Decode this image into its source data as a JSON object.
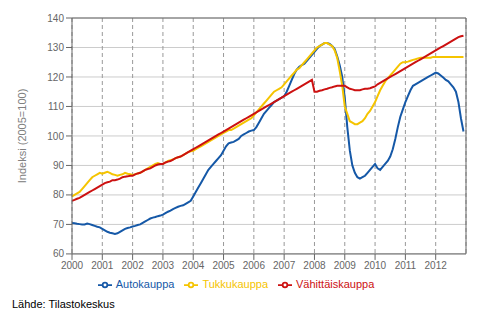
{
  "chart_data": {
    "type": "line",
    "ylabel": "Indeksi (2005=100)",
    "annotation": "Lähde: Tilastokeskus",
    "grid": true,
    "legend": "bottom",
    "ylim": [
      60,
      140
    ],
    "yticks": [
      60,
      70,
      80,
      90,
      100,
      110,
      120,
      130,
      140
    ],
    "xlim": [
      2000.0,
      2013.0
    ],
    "xticks": [
      2000,
      2001,
      2002,
      2003,
      2004,
      2005,
      2006,
      2007,
      2008,
      2009,
      2010,
      2011,
      2012
    ],
    "x": [
      2000.0,
      2000.083,
      2000.167,
      2000.25,
      2000.333,
      2000.417,
      2000.5,
      2000.583,
      2000.667,
      2000.75,
      2000.833,
      2000.917,
      2001.0,
      2001.083,
      2001.167,
      2001.25,
      2001.333,
      2001.417,
      2001.5,
      2001.583,
      2001.667,
      2001.75,
      2001.833,
      2001.917,
      2002.0,
      2002.083,
      2002.167,
      2002.25,
      2002.333,
      2002.417,
      2002.5,
      2002.583,
      2002.667,
      2002.75,
      2002.833,
      2002.917,
      2003.0,
      2003.083,
      2003.167,
      2003.25,
      2003.333,
      2003.417,
      2003.5,
      2003.583,
      2003.667,
      2003.75,
      2003.833,
      2003.917,
      2004.0,
      2004.083,
      2004.167,
      2004.25,
      2004.333,
      2004.417,
      2004.5,
      2004.583,
      2004.667,
      2004.75,
      2004.833,
      2004.917,
      2005.0,
      2005.083,
      2005.167,
      2005.25,
      2005.333,
      2005.417,
      2005.5,
      2005.583,
      2005.667,
      2005.75,
      2005.833,
      2005.917,
      2006.0,
      2006.083,
      2006.167,
      2006.25,
      2006.333,
      2006.417,
      2006.5,
      2006.583,
      2006.667,
      2006.75,
      2006.833,
      2006.917,
      2007.0,
      2007.083,
      2007.167,
      2007.25,
      2007.333,
      2007.417,
      2007.5,
      2007.583,
      2007.667,
      2007.75,
      2007.833,
      2007.917,
      2008.0,
      2008.083,
      2008.167,
      2008.25,
      2008.333,
      2008.417,
      2008.5,
      2008.583,
      2008.667,
      2008.75,
      2008.833,
      2008.917,
      2009.0,
      2009.083,
      2009.167,
      2009.25,
      2009.333,
      2009.417,
      2009.5,
      2009.583,
      2009.667,
      2009.75,
      2009.833,
      2009.917,
      2010.0,
      2010.083,
      2010.167,
      2010.25,
      2010.333,
      2010.417,
      2010.5,
      2010.583,
      2010.667,
      2010.75,
      2010.833,
      2010.917,
      2011.0,
      2011.083,
      2011.167,
      2011.25,
      2011.333,
      2011.417,
      2011.5,
      2011.583,
      2011.667,
      2011.75,
      2011.833,
      2011.917,
      2012.0,
      2012.083,
      2012.167,
      2012.25,
      2012.333,
      2012.417,
      2012.5,
      2012.583,
      2012.667,
      2012.75,
      2012.833,
      2012.917
    ],
    "series": [
      {
        "name": "Autokauppa",
        "color": "#1558A7",
        "values": [
          70.5,
          70.4,
          70.2,
          70.1,
          70.0,
          70.0,
          70.3,
          70.1,
          69.8,
          69.5,
          69.2,
          69.0,
          68.5,
          68.0,
          67.5,
          67.2,
          67.0,
          66.8,
          67.0,
          67.5,
          68.0,
          68.5,
          68.8,
          69.0,
          69.3,
          69.5,
          69.8,
          70.0,
          70.5,
          71.0,
          71.5,
          72.0,
          72.3,
          72.5,
          72.8,
          73.0,
          73.3,
          73.8,
          74.3,
          74.7,
          75.2,
          75.6,
          76.0,
          76.3,
          76.5,
          77.0,
          77.5,
          78.0,
          79.5,
          81.0,
          82.5,
          84.0,
          85.5,
          87.0,
          88.5,
          89.5,
          90.5,
          91.5,
          92.5,
          93.5,
          95.0,
          96.5,
          97.5,
          97.8,
          98.0,
          98.5,
          99.0,
          100.0,
          100.5,
          101.0,
          101.5,
          101.8,
          102.0,
          103.0,
          104.5,
          106.0,
          107.5,
          108.5,
          109.5,
          110.5,
          111.5,
          112.0,
          112.5,
          113.0,
          113.5,
          115.0,
          117.0,
          119.0,
          121.0,
          122.5,
          123.5,
          124.0,
          124.5,
          125.5,
          126.5,
          127.5,
          128.5,
          129.5,
          130.5,
          131.0,
          131.5,
          131.5,
          131.2,
          130.5,
          129.5,
          127.0,
          124.0,
          120.0,
          113.0,
          103.0,
          95.0,
          90.0,
          87.5,
          86.0,
          85.5,
          86.0,
          86.5,
          87.5,
          88.5,
          89.5,
          90.5,
          89.0,
          88.5,
          89.5,
          90.5,
          91.5,
          93.0,
          95.5,
          99.0,
          103.0,
          106.5,
          109.0,
          111.5,
          113.5,
          115.5,
          117.0,
          117.5,
          118.0,
          118.5,
          119.0,
          119.5,
          120.0,
          120.5,
          121.0,
          121.5,
          121.2,
          120.5,
          119.8,
          119.0,
          118.5,
          117.5,
          116.5,
          115.0,
          111.5,
          106.0,
          101.5
        ]
      },
      {
        "name": "Tukkukauppa",
        "color": "#F5C400",
        "values": [
          79.5,
          80.0,
          80.5,
          81.0,
          82.0,
          83.0,
          84.0,
          85.0,
          86.0,
          86.5,
          87.0,
          87.5,
          87.2,
          87.5,
          87.8,
          87.5,
          87.0,
          86.8,
          86.5,
          86.8,
          87.0,
          87.5,
          87.2,
          87.0,
          86.8,
          87.0,
          87.3,
          87.5,
          88.0,
          88.5,
          89.0,
          89.5,
          90.0,
          90.5,
          90.8,
          90.5,
          90.5,
          91.0,
          91.5,
          91.8,
          92.0,
          92.5,
          92.8,
          93.0,
          93.5,
          94.0,
          94.5,
          94.8,
          95.0,
          95.5,
          96.0,
          96.5,
          97.0,
          97.5,
          98.0,
          98.5,
          99.0,
          99.5,
          100.0,
          100.5,
          101.0,
          101.5,
          102.0,
          102.0,
          102.5,
          103.0,
          103.5,
          104.0,
          104.5,
          105.0,
          105.5,
          106.0,
          107.0,
          108.0,
          109.0,
          110.0,
          111.0,
          112.0,
          113.0,
          114.0,
          115.0,
          115.5,
          116.0,
          116.5,
          117.5,
          118.5,
          119.5,
          120.5,
          121.5,
          122.5,
          123.0,
          124.0,
          125.0,
          126.0,
          127.0,
          128.0,
          129.0,
          130.0,
          130.5,
          131.0,
          131.5,
          131.5,
          131.0,
          130.5,
          129.0,
          126.5,
          122.0,
          117.0,
          110.0,
          107.5,
          105.0,
          104.5,
          104.0,
          104.0,
          104.5,
          105.0,
          106.0,
          107.5,
          108.5,
          110.0,
          111.5,
          113.5,
          115.5,
          117.0,
          118.5,
          119.5,
          120.5,
          121.5,
          122.5,
          123.5,
          124.5,
          125.0,
          125.0,
          125.2,
          125.5,
          125.8,
          126.0,
          126.3,
          126.5,
          126.5,
          126.5,
          126.5,
          126.5,
          126.8,
          126.8,
          126.8,
          126.8,
          126.8,
          126.8,
          126.8,
          126.8,
          126.8,
          126.8,
          126.8,
          126.8,
          126.8
        ]
      },
      {
        "name": "Vähittäiskauppa",
        "color": "#CC1111",
        "values": [
          78.0,
          78.3,
          78.7,
          79.0,
          79.5,
          80.0,
          80.5,
          81.0,
          81.5,
          82.0,
          82.5,
          83.0,
          83.5,
          84.0,
          84.3,
          84.5,
          85.0,
          85.0,
          85.2,
          85.5,
          86.0,
          86.2,
          86.3,
          86.5,
          86.5,
          87.0,
          87.3,
          87.5,
          88.0,
          88.5,
          88.8,
          89.0,
          89.5,
          90.0,
          90.3,
          90.5,
          90.5,
          91.0,
          91.3,
          91.5,
          92.0,
          92.5,
          92.8,
          93.0,
          93.5,
          94.0,
          94.5,
          95.0,
          95.5,
          96.0,
          96.5,
          97.0,
          97.5,
          98.0,
          98.5,
          99.0,
          99.5,
          100.0,
          100.5,
          101.0,
          101.5,
          102.0,
          102.5,
          103.0,
          103.5,
          104.0,
          104.5,
          105.0,
          105.5,
          106.0,
          106.5,
          107.0,
          107.5,
          108.0,
          108.5,
          109.0,
          109.5,
          110.0,
          110.5,
          111.0,
          111.5,
          112.0,
          112.5,
          113.0,
          113.5,
          114.0,
          114.5,
          115.0,
          115.5,
          116.0,
          116.5,
          117.0,
          117.5,
          118.0,
          118.5,
          119.0,
          115.0,
          115.0,
          115.3,
          115.5,
          115.8,
          116.0,
          116.3,
          116.5,
          116.8,
          117.0,
          117.0,
          117.0,
          117.0,
          116.5,
          116.0,
          115.8,
          115.5,
          115.5,
          115.5,
          115.8,
          116.0,
          116.0,
          116.2,
          116.5,
          116.8,
          117.5,
          118.0,
          118.5,
          119.0,
          119.5,
          120.0,
          120.5,
          121.0,
          121.5,
          122.0,
          122.5,
          123.0,
          123.5,
          124.0,
          124.5,
          125.0,
          125.5,
          126.0,
          126.5,
          127.0,
          127.5,
          128.0,
          128.5,
          129.0,
          129.5,
          130.0,
          130.5,
          131.0,
          131.5,
          132.0,
          132.5,
          133.0,
          133.5,
          133.8,
          134.0
        ]
      }
    ]
  }
}
